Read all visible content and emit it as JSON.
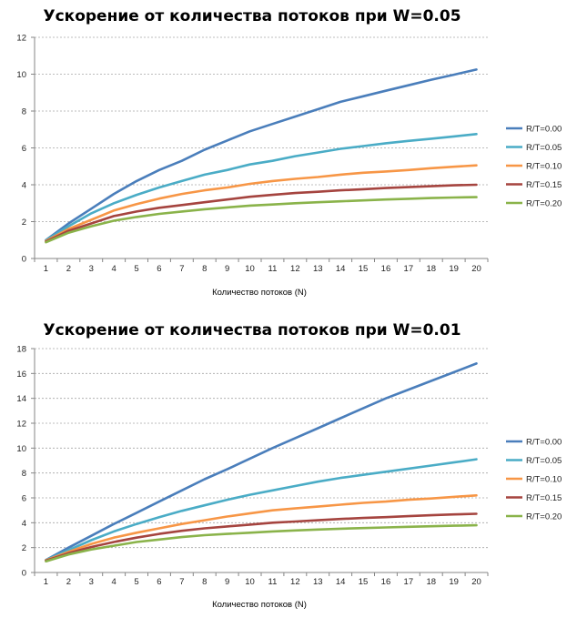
{
  "chart_data": [
    {
      "type": "line",
      "title": "Ускорение от количества потоков при W=0.05",
      "xlabel": "Количество потоков (N)",
      "ylabel": "",
      "ylim": [
        0,
        12
      ],
      "yticks": [
        0,
        2,
        4,
        6,
        8,
        10,
        12
      ],
      "grid": true,
      "legend": "right",
      "x": [
        1,
        2,
        3,
        4,
        5,
        6,
        7,
        8,
        9,
        10,
        11,
        12,
        13,
        14,
        15,
        16,
        17,
        18,
        19,
        20
      ],
      "series": [
        {
          "name": "R/T=0.00",
          "color": "#4a7ebb",
          "values": [
            1.0,
            1.9,
            2.7,
            3.5,
            4.2,
            4.8,
            5.3,
            5.9,
            6.4,
            6.9,
            7.3,
            7.7,
            8.1,
            8.5,
            8.8,
            9.1,
            9.4,
            9.7,
            9.97,
            10.25
          ]
        },
        {
          "name": "R/T=0.05",
          "color": "#4aacc6",
          "values": [
            1.0,
            1.75,
            2.45,
            3.0,
            3.45,
            3.85,
            4.2,
            4.55,
            4.8,
            5.1,
            5.3,
            5.55,
            5.75,
            5.95,
            6.1,
            6.25,
            6.38,
            6.5,
            6.62,
            6.75
          ]
        },
        {
          "name": "R/T=0.10",
          "color": "#f79646",
          "values": [
            0.95,
            1.6,
            2.1,
            2.6,
            2.95,
            3.25,
            3.5,
            3.7,
            3.85,
            4.05,
            4.2,
            4.32,
            4.42,
            4.55,
            4.65,
            4.72,
            4.8,
            4.9,
            4.98,
            5.05
          ]
        },
        {
          "name": "R/T=0.15",
          "color": "#a5443f",
          "values": [
            0.92,
            1.5,
            1.9,
            2.3,
            2.55,
            2.75,
            2.9,
            3.05,
            3.2,
            3.35,
            3.45,
            3.55,
            3.62,
            3.7,
            3.76,
            3.82,
            3.87,
            3.92,
            3.97,
            4.0
          ]
        },
        {
          "name": "R/T=0.20",
          "color": "#8ab34a",
          "values": [
            0.88,
            1.4,
            1.75,
            2.05,
            2.25,
            2.42,
            2.55,
            2.67,
            2.77,
            2.87,
            2.93,
            3.0,
            3.05,
            3.1,
            3.15,
            3.2,
            3.24,
            3.28,
            3.31,
            3.33
          ]
        }
      ]
    },
    {
      "type": "line",
      "title": "Ускорение от количества потоков при W=0.01",
      "xlabel": "Количество потоков (N)",
      "ylabel": "",
      "ylim": [
        0,
        18
      ],
      "yticks": [
        0,
        2,
        4,
        6,
        8,
        10,
        12,
        14,
        16,
        18
      ],
      "grid": true,
      "legend": "right",
      "x": [
        1,
        2,
        3,
        4,
        5,
        6,
        7,
        8,
        9,
        10,
        11,
        12,
        13,
        14,
        15,
        16,
        17,
        18,
        19,
        20
      ],
      "series": [
        {
          "name": "R/T=0.00",
          "color": "#4a7ebb",
          "values": [
            1.0,
            2.0,
            2.95,
            3.9,
            4.8,
            5.7,
            6.6,
            7.5,
            8.3,
            9.15,
            10.0,
            10.8,
            11.6,
            12.4,
            13.2,
            14.0,
            14.7,
            15.4,
            16.1,
            16.8
          ]
        },
        {
          "name": "R/T=0.05",
          "color": "#4aacc6",
          "values": [
            1.0,
            1.8,
            2.6,
            3.3,
            3.9,
            4.45,
            4.95,
            5.4,
            5.85,
            6.25,
            6.6,
            6.95,
            7.3,
            7.6,
            7.85,
            8.1,
            8.35,
            8.6,
            8.85,
            9.1
          ]
        },
        {
          "name": "R/T=0.10",
          "color": "#f79646",
          "values": [
            0.98,
            1.65,
            2.3,
            2.8,
            3.2,
            3.55,
            3.9,
            4.2,
            4.5,
            4.75,
            5.0,
            5.15,
            5.3,
            5.45,
            5.6,
            5.7,
            5.85,
            5.95,
            6.08,
            6.2
          ]
        },
        {
          "name": "R/T=0.15",
          "color": "#a5443f",
          "values": [
            0.95,
            1.55,
            2.05,
            2.45,
            2.8,
            3.1,
            3.35,
            3.55,
            3.7,
            3.85,
            4.0,
            4.1,
            4.2,
            4.3,
            4.38,
            4.45,
            4.53,
            4.6,
            4.67,
            4.72
          ]
        },
        {
          "name": "R/T=0.20",
          "color": "#8ab34a",
          "values": [
            0.9,
            1.45,
            1.85,
            2.15,
            2.45,
            2.65,
            2.85,
            3.0,
            3.1,
            3.2,
            3.3,
            3.38,
            3.45,
            3.52,
            3.57,
            3.62,
            3.67,
            3.72,
            3.76,
            3.8
          ]
        }
      ]
    }
  ]
}
